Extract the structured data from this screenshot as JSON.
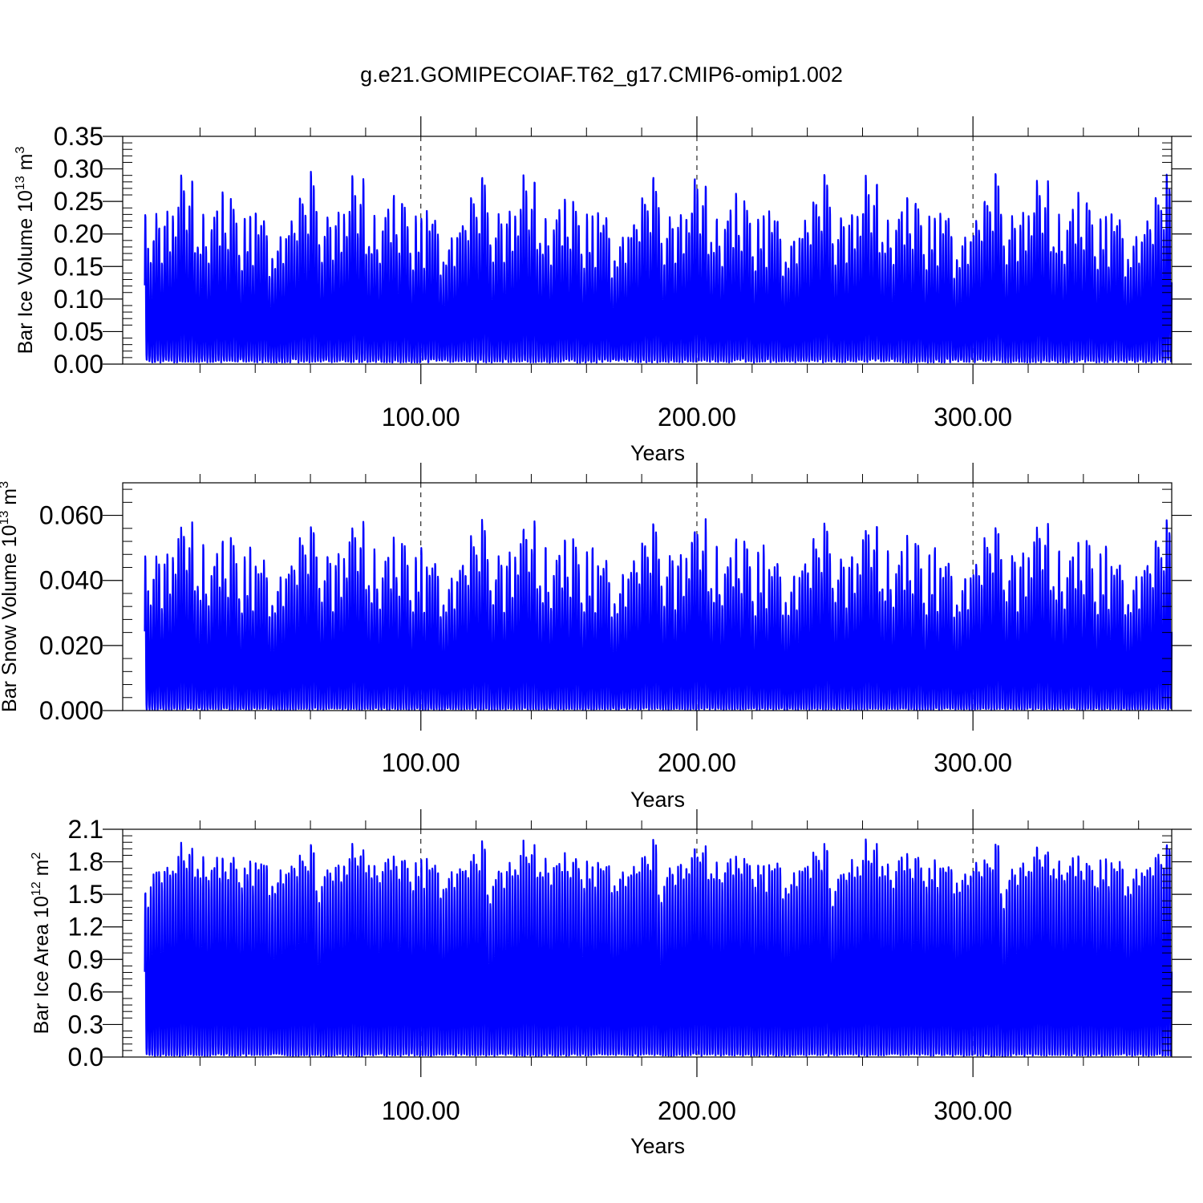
{
  "title": "g.e21.GOMIPECOIAF.T62_g17.CMIP6-omip1.002",
  "chart_data": [
    {
      "type": "line",
      "ylabel": "Bar Ice Volume",
      "yunit_base": "10",
      "yunit_exp": "13",
      "yunit_tail": "m",
      "yunit_tail_exp": "3",
      "xlabel": "Years",
      "xlim": [
        -8,
        372
      ],
      "ylim": [
        0,
        0.35
      ],
      "xticks": [
        100,
        200,
        300
      ],
      "xtick_labels": [
        "100.00",
        "200.00",
        "300.00"
      ],
      "yticks": [
        0,
        0.05,
        0.1,
        0.15,
        0.2,
        0.25,
        0.3,
        0.35
      ],
      "ytick_labels": [
        "0.00",
        "0.05",
        "0.10",
        "0.15",
        "0.20",
        "0.25",
        "0.30",
        "0.35"
      ],
      "color": "#0000ff",
      "grid": "dashed at major x ticks",
      "x_start": 0,
      "x_end": 372,
      "cycle_years": 62,
      "annual_peaks": [
        0.245,
        0.19,
        0.16,
        0.2,
        0.235,
        0.22,
        0.165,
        0.22,
        0.24,
        0.18,
        0.235,
        0.205,
        0.245,
        0.297,
        0.275,
        0.21,
        0.25,
        0.29,
        0.18,
        0.19,
        0.175,
        0.235,
        0.185,
        0.16,
        0.215,
        0.23,
        0.245,
        0.19,
        0.27,
        0.205,
        0.18,
        0.26,
        0.245,
        0.225,
        0.175,
        0.15,
        0.235,
        0.18,
        0.235,
        0.155,
        0.24,
        0.21,
        0.225,
        0.23,
        0.205,
        0.14,
        0.165,
        0.155,
        0.185,
        0.2,
        0.16,
        0.2,
        0.205,
        0.225,
        0.21,
        0.195,
        0.265,
        0.255,
        0.24,
        0.21,
        0.302,
        0.28,
        0.245,
        0.295,
        0.24,
        0.228,
        0.16
      ],
      "min_level": 0.005
    },
    {
      "type": "line",
      "ylabel": "Bar Snow Volume",
      "yunit_base": "10",
      "yunit_exp": "13",
      "yunit_tail": "m",
      "yunit_tail_exp": "3",
      "xlabel": "Years",
      "xlim": [
        -8,
        372
      ],
      "ylim": [
        0,
        0.07
      ],
      "xticks": [
        100,
        200,
        300
      ],
      "xtick_labels": [
        "100.00",
        "200.00",
        "300.00"
      ],
      "yticks": [
        0,
        0.02,
        0.04,
        0.06
      ],
      "ytick_labels": [
        "0.000",
        "0.020",
        "0.040",
        "0.060"
      ],
      "color": "#0000ff",
      "grid": "dashed at major x ticks",
      "x_start": 0,
      "x_end": 372,
      "cycle_years": 62,
      "annual_peaks": [
        0.049,
        0.039,
        0.034,
        0.042,
        0.049,
        0.047,
        0.032,
        0.046,
        0.05,
        0.037,
        0.048,
        0.043,
        0.054,
        0.058,
        0.056,
        0.045,
        0.052,
        0.06,
        0.038,
        0.039,
        0.035,
        0.052,
        0.038,
        0.033,
        0.043,
        0.047,
        0.05,
        0.039,
        0.055,
        0.042,
        0.037,
        0.054,
        0.052,
        0.046,
        0.035,
        0.031,
        0.05,
        0.037,
        0.052,
        0.032,
        0.046,
        0.043,
        0.045,
        0.047,
        0.042,
        0.03,
        0.034,
        0.031,
        0.038,
        0.043,
        0.033,
        0.042,
        0.044,
        0.047,
        0.044,
        0.04,
        0.055,
        0.053,
        0.049,
        0.044,
        0.06,
        0.057,
        0.051,
        0.06,
        0.05,
        0.047,
        0.033
      ],
      "min_level": 0.0005
    },
    {
      "type": "line",
      "ylabel": "Bar Ice Area",
      "yunit_base": "10",
      "yunit_exp": "12",
      "yunit_tail": "m",
      "yunit_tail_exp": "2",
      "xlabel": "Years",
      "xlim": [
        -8,
        372
      ],
      "ylim": [
        0,
        2.1
      ],
      "xticks": [
        100,
        200,
        300
      ],
      "xtick_labels": [
        "100.00",
        "200.00",
        "300.00"
      ],
      "yticks": [
        0,
        0.3,
        0.6,
        0.9,
        1.2,
        1.5,
        1.8,
        2.1
      ],
      "ytick_labels": [
        "0.0",
        "0.3",
        "0.6",
        "0.9",
        "1.2",
        "1.5",
        "1.8",
        "2.1"
      ],
      "color": "#0000ff",
      "grid": "dashed at major x ticks",
      "x_start": 0,
      "x_end": 372,
      "cycle_years": 62,
      "annual_peaks": [
        1.58,
        1.45,
        1.6,
        1.72,
        1.78,
        1.75,
        1.66,
        1.8,
        1.85,
        1.72,
        1.82,
        1.78,
        1.9,
        2.05,
        1.92,
        1.86,
        1.96,
        2.0,
        1.75,
        1.8,
        1.7,
        1.88,
        1.73,
        1.66,
        1.8,
        1.84,
        1.9,
        1.75,
        1.95,
        1.8,
        1.72,
        1.9,
        1.88,
        1.82,
        1.68,
        1.6,
        1.86,
        1.73,
        1.87,
        1.6,
        1.86,
        1.8,
        1.82,
        1.84,
        1.8,
        1.55,
        1.63,
        1.6,
        1.7,
        1.76,
        1.64,
        1.75,
        1.78,
        1.83,
        1.79,
        1.74,
        1.92,
        1.9,
        1.85,
        1.8,
        2.06,
        2.0,
        1.88,
        1.98,
        1.85,
        1.82,
        1.6
      ],
      "min_level": 0.02
    }
  ]
}
